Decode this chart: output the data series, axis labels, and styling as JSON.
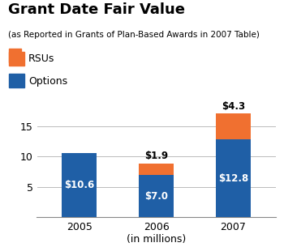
{
  "title": "Grant Date Fair Value",
  "subtitle": "(as Reported in Grants of Plan-Based Awards in 2007 Table)",
  "categories": [
    "2005",
    "2006",
    "2007"
  ],
  "options_values": [
    10.6,
    7.0,
    12.8
  ],
  "rsus_values": [
    0.0,
    1.9,
    4.3
  ],
  "options_color": "#1F5FA6",
  "rsus_color": "#F07030",
  "options_label": "Options",
  "rsus_label": "RSUs",
  "options_annotations": [
    "$10.6",
    "$7.0",
    "$12.8"
  ],
  "rsus_annotations": [
    "",
    "$1.9",
    "$4.3"
  ],
  "xlabel": "(in millions)",
  "yticks": [
    5,
    10,
    15
  ],
  "ylim": [
    0,
    17.5
  ],
  "bar_width": 0.45,
  "background_color": "#ffffff",
  "title_fontsize": 13,
  "subtitle_fontsize": 7.5,
  "tick_fontsize": 9,
  "annotation_fontsize": 8.5,
  "legend_fontsize": 9
}
